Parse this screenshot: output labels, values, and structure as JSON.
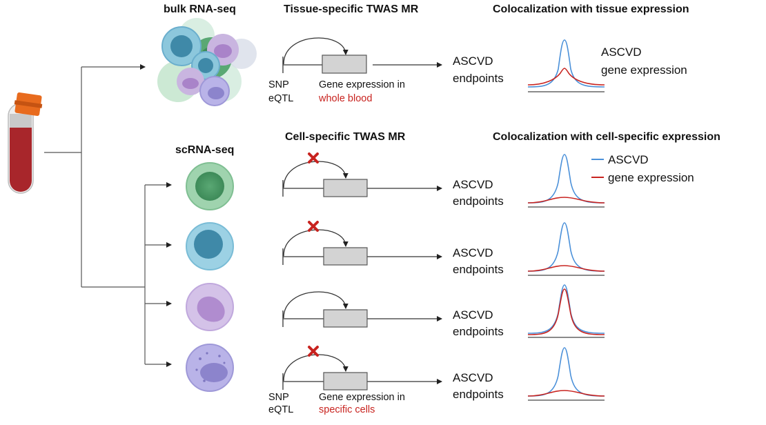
{
  "headers": {
    "bulk": "bulk RNA-seq",
    "scrna": "scRNA-seq",
    "tissue_mr": "Tissue-specific TWAS MR",
    "cell_mr": "Cell-specific TWAS MR",
    "coloc_tissue": "Colocalization with tissue expression",
    "coloc_cell": "Colocalization with cell-specific expression"
  },
  "outcome": {
    "line1": "ASCVD",
    "line2": "endpoints"
  },
  "snp": {
    "line1": "SNP",
    "line2": "eQTL"
  },
  "gene_expr": {
    "line1": "Gene expression in",
    "tissue": "whole blood",
    "cells": "specific cells"
  },
  "tissue_legend": {
    "line1": "ASCVD",
    "line2": "gene expression"
  },
  "cell_legend": [
    {
      "label": "ASCVD",
      "color": "#4a90d9"
    },
    {
      "label": "gene expression",
      "color": "#c8231f"
    }
  ],
  "colors": {
    "ascvd_curve": "#4a90d9",
    "gene_curve": "#c8231f",
    "highlight_text": "#c8231f",
    "cross": "#c8231f",
    "gene_box": "#d3d3d3"
  },
  "cell_rows": [
    {
      "blocked": true,
      "gene_peak": "low"
    },
    {
      "blocked": true,
      "gene_peak": "low"
    },
    {
      "blocked": false,
      "gene_peak": "coloc"
    },
    {
      "blocked": true,
      "gene_peak": "low"
    }
  ]
}
